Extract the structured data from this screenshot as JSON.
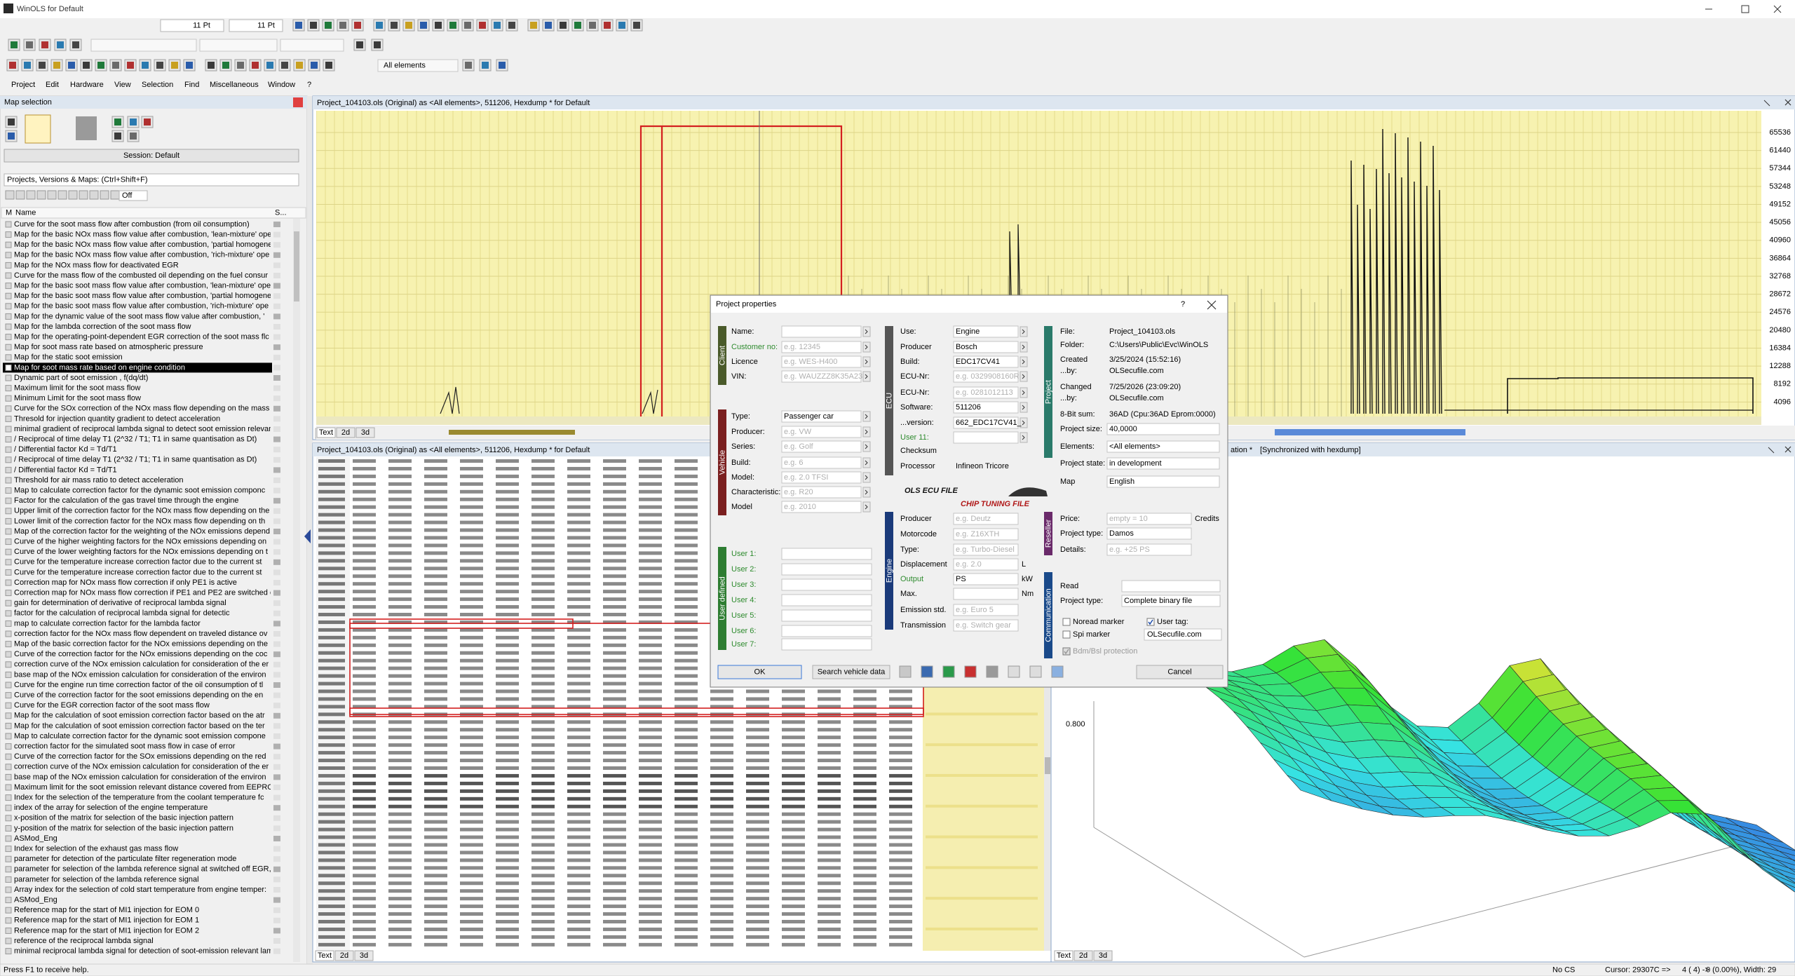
{
  "window_title": "WinOLS for Default",
  "toolbar": {
    "font_size_1": "11 Pt",
    "font_size_2": "11 Pt",
    "elements": "All elements"
  },
  "menu": [
    "Project",
    "Edit",
    "Hardware",
    "View",
    "Selection",
    "Find",
    "Miscellaneous",
    "Window",
    "?"
  ],
  "map_selection": {
    "title": "Map selection",
    "session": "Session: Default",
    "filter": "Projects, Versions & Maps: (Ctrl+Shift+F)",
    "off": "Off",
    "column_m": "M",
    "column_name": "Name",
    "column_s": "S...",
    "selected": 14,
    "items": [
      "Curve for the soot mass flow after combustion (from oil consumption)",
      "Map for the basic NOx mass flow value after combustion, 'lean-mixture' ope",
      "Map for the basic NOx mass flow value after combustion, 'partial homogene",
      "Map for the basic NOx mass flow value after combustion, 'rich-mixture' ope",
      "Map for the NOx mass flow for deactivated EGR",
      "Curve for the mass flow of the combusted oil depending on the fuel consur",
      "Map for the basic soot mass flow value after combustion, 'lean-mixture' ope",
      "Map for the basic soot mass flow value after combustion, 'partial homogene",
      "Map for the basic soot mass flow value after combustion, 'rich-mixture' ope",
      "Map for the dynamic value of the soot mass flow value after combustion, '",
      "Map for the lambda correction of the soot mass flow",
      "Map for the operating-point-dependent EGR correction of the soot mass flc",
      "Map for soot mass rate based on atmospheric pressure",
      "Map for the static soot emission",
      "Map for soot mass rate based on engine condition",
      "Dynamic part of soot emission , f(dq/dt)",
      "Maximum limit for the soot mass flow",
      "Minimum Limit for the soot mass flow",
      "Curve for the SOx correction of the NOx mass flow depending on the mass flow of the",
      "Thresold for injection quantity gradient to detect acceleration",
      "minimal gradient of reciprocal lambda signal to detect soot emission relevan",
      "/ Reciprocal of time delay T1 (2^32 / T1; T1 in same quantisation as Dt)",
      "/ Differential factor Kd = Td/T1",
      "/ Reciprocal of time delay T1 (2^32 / T1; T1 in same quantisation as Dt)",
      "/ Differential factor Kd = Td/T1",
      "Threshold for air mass ratio to detect acceleration",
      "Map to calculate correction factor for the dynamic soot emission componc",
      "Factor for the calculation of the gas travel time through the engine",
      "Upper limit of the correction factor for the NOx mass flow depending on the",
      "Lower limit of the correction factor for the NOx mass flow depending on th",
      "Map of the correction factor for the weighting of the NOx emissions depend",
      "Curve of the higher weighting factors for the NOx emissions depending on",
      "Curve of the lower weighting factors for the NOx emissions depending on t",
      "Curve for the temperature increase correction factor due to the current st",
      "Curve for the temperature increase correction factor due to the current st",
      "Correction map for NOx mass flow correction if only PE1 is active",
      "Correction map for NOx mass flow correction if PE1 and PE2 are switched o",
      "gain for determination of derivative of reciprocal lambda signal",
      "factor for the calculation of reciprocal lambda signal for detectic",
      "map to calculate correction factor for the lambda factor",
      "correction factor for the NOx mass flow dependent on traveled distance ov",
      "Map of the basic correction factor for the NOx emissions depending on the",
      "Curve of the correction factor for the NOx emissions depending on the coc",
      "correction curve of the NOx emission calculation for consideration of the er",
      "base map of the NOx emission calculation for consideration of the environ",
      "Curve for the engine run time correction factor of the oil consumption of tl",
      "Curve of the correction factor for the soot emissions depending on the en",
      "Curve for the EGR correction factor of the soot mass flow",
      "Map for the calculation of soot emission correction factor based on the atr",
      "Map for the calculation of soot emission correction factor based on the ter",
      "Map to calculate correction factor for the dynamic soot emission compone",
      "correction factor for the simulated soot mass flow in case of error",
      "Curve of the correction factor for the SOx emissions depending on the red",
      "correction curve of the NOx emission calculation for consideration of the er",
      "base map of the NOx emission calculation for consideration of the environ",
      "Maximum limit for the soot emission relevant distance covered from EEPRC",
      "Index for the selection of the temperature from the coolant temperature fc",
      "index of the array for selection of the engine temperature",
      "x-position of the matrix for selection of the basic injection pattern",
      "y-position of the matrix for selection of the basic injection pattern",
      "ASMod_Eng",
      "Index for selection of the exhaust gas mass flow",
      "parameter for detection of the particulate filter regeneration mode",
      "parameter for selection of the lambda reference signal at switched off EGR,",
      "parameter for selection of the lambda reference signal",
      "Array index for the selection of cold start temperature from engine temper:",
      "ASMod_Eng",
      "Reference map for the start of MI1 injection for EOM 0",
      "Reference map for the start of MI1 injection for EOM 1",
      "Reference map for the start of MI1 injection for EOM 2",
      "reference of the reciprocal lambda signal",
      "minimal reciprocal lambda signal for detection of soot-emission relevant lam"
    ]
  },
  "top_window": {
    "title": "Project_104103.ols (Original) as <All elements>, 511206, Hexdump * for Default",
    "yticks": [
      65536,
      61440,
      57344,
      53248,
      49152,
      45056,
      40960,
      36864,
      32768,
      28672,
      24576,
      20480,
      16384,
      12288,
      8192,
      4096
    ],
    "tabs": [
      "Text",
      "2d",
      "3d"
    ]
  },
  "hex_window": {
    "title": "Project_104103.ols (Original) as <All elements>, 511206, Hexdump * for Default",
    "tabs": [
      "Text",
      "2d",
      "3d"
    ]
  },
  "graph_window": {
    "title": "ation *",
    "sync": "[Synchronized with hexdump]",
    "axis_label": "0.800",
    "tabs": [
      "Text",
      "2d",
      "3d"
    ]
  },
  "dialog": {
    "title": "Project properties",
    "help": "?",
    "client": {
      "label": "Client",
      "fields": [
        {
          "label": "Name:"
        },
        {
          "label": "Customer no:",
          "hint": "e.g. 12345",
          "color": "#2e8b2e"
        },
        {
          "label": "Licence",
          "hint": "e.g. WES-H400"
        },
        {
          "label": "VIN:",
          "hint": "e.g. WAUZZZ8K35A23"
        }
      ]
    },
    "vehicle": {
      "label": "Vehicle",
      "fields": [
        {
          "label": "Type:",
          "value": "Passenger car"
        },
        {
          "label": "Producer:",
          "hint": "e.g. VW"
        },
        {
          "label": "Series:",
          "hint": "e.g. Golf"
        },
        {
          "label": "Build:",
          "hint": "e.g. 6"
        },
        {
          "label": "Model:",
          "hint": "e.g. 2.0 TFSI"
        },
        {
          "label": "Characteristic:",
          "hint": "e.g. R20"
        },
        {
          "label": "Model",
          "hint": "e.g. 2010"
        }
      ]
    },
    "user_defined": {
      "label": "User defined",
      "fields": [
        {
          "label": "User 1:",
          "color": "#2e8b2e"
        },
        {
          "label": "User 2:",
          "color": "#2e8b2e"
        },
        {
          "label": "User 3:",
          "color": "#2e8b2e"
        },
        {
          "label": "User 4:",
          "color": "#2e8b2e"
        },
        {
          "label": "User 5:",
          "color": "#2e8b2e"
        },
        {
          "label": "User 6:",
          "color": "#2e8b2e"
        },
        {
          "label": "User 7:",
          "color": "#2e8b2e"
        }
      ]
    },
    "ecu": {
      "label": "ECU",
      "fields": [
        {
          "label": "Use:",
          "value": "Engine"
        },
        {
          "label": "Producer",
          "value": "Bosch"
        },
        {
          "label": "Build:",
          "value": "EDC17CV41"
        },
        {
          "label": "ECU-Nr:",
          "hint": "e.g. 0329908160R"
        },
        {
          "label": "ECU-Nr:",
          "hint": "e.g. 0281012113"
        },
        {
          "label": "Software:",
          "value": "511206"
        },
        {
          "label": "...version:",
          "value": "662_EDC17CV41_"
        },
        {
          "label": "User 11:",
          "color": "#2e8b2e"
        },
        {
          "label": "Checksum",
          "input": false
        },
        {
          "label": "Processor",
          "value": "Infineon Tricore",
          "input": false
        }
      ]
    },
    "logo": {
      "title": "OLS ECU FILE",
      "subtitle": "CHIP TUNING FILE"
    },
    "engine": {
      "label": "Engine",
      "fields": [
        {
          "label": "Producer",
          "hint": "e.g. Deutz"
        },
        {
          "label": "Motorcode",
          "hint": "e.g. Z16XTH"
        },
        {
          "label": "Type:",
          "hint": "e.g. Turbo-Diesel"
        },
        {
          "label": "Displacement",
          "hint": "e.g. 2.0",
          "unit": "L"
        },
        {
          "label": "Output",
          "value": "PS",
          "unit": "kW",
          "color": "#2e8b2e"
        },
        {
          "label": "Max.",
          "unit": "Nm"
        },
        {
          "label": "Emission std.",
          "hint": "e.g. Euro 5"
        },
        {
          "label": "Transmission",
          "hint": "e.g. Switch gear"
        }
      ]
    },
    "project": {
      "label": "Project",
      "fields": [
        {
          "label": "File:",
          "value": "Project_104103.ols",
          "input": false
        },
        {
          "label": "Folder:",
          "value": "C:\\Users\\Public\\Evc\\WinOLS",
          "input": false
        },
        {
          "label": "Created",
          "value": "3/25/2024 (15:52:16)",
          "input": false
        },
        {
          "label": "...by:",
          "value": "OLSecufile.com",
          "input": false
        },
        {
          "label": "Changed",
          "value": "7/25/2026 (23:09:20)",
          "input": false
        },
        {
          "label": "...by:",
          "value": "OLSecufile.com",
          "input": false
        },
        {
          "label": "8-Bit sum:",
          "value": "36AD (Cpu:36AD Eprom:0000)",
          "input": false
        },
        {
          "label": "Project size:",
          "value": "40,0000"
        },
        {
          "label": "Elements:",
          "value": "<All elements>"
        },
        {
          "label": "Project state:",
          "value": "in development"
        },
        {
          "label": "Map",
          "value": "English"
        }
      ]
    },
    "reseller": {
      "label": "Reseller",
      "fields": [
        {
          "label": "Price:",
          "hint": "empty = 10",
          "unit": "Credits"
        },
        {
          "label": "Project type:",
          "value": "Damos"
        },
        {
          "label": "Details:",
          "hint": "e.g. +25 PS"
        }
      ]
    },
    "communication": {
      "label": "Communication",
      "fields": [
        {
          "label": "Read"
        },
        {
          "label": "Project type:",
          "value": "Complete binary file"
        }
      ],
      "checkboxes": [
        {
          "label": "Noread marker",
          "checked": false
        },
        {
          "label": "User tag:",
          "checked": true
        },
        {
          "label": "Spi marker",
          "checked": false,
          "value": "OLSecufile.com"
        },
        {
          "label": "Bdm/Bsl protection",
          "checked": true
        }
      ]
    },
    "buttons": [
      "OK",
      "Search vehicle data",
      "Cancel"
    ]
  },
  "status": {
    "help": "Press F1 to receive help.",
    "checksum": "No CS",
    "cursor": "Cursor: 29307C =>",
    "position": "4 ( 4) ->",
    "selection": "0 (0.00%), Width: 29"
  }
}
